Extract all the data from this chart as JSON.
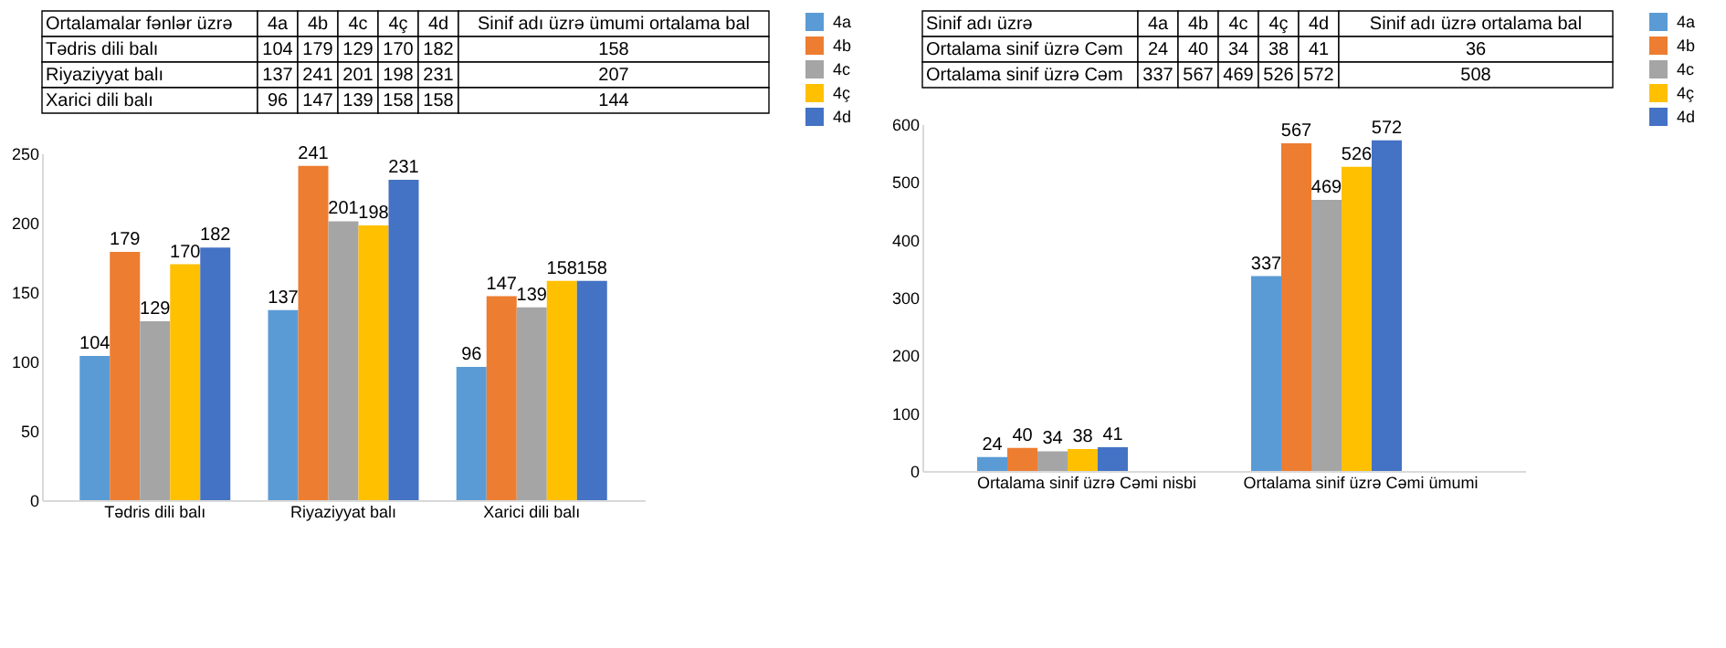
{
  "chart_data": [
    {
      "type": "bar",
      "categories": [
        "Tədris dili balı",
        "Riyaziyyat balı",
        "Xarici dili balı"
      ],
      "series": [
        {
          "name": "4a",
          "color": "#5b9bd5",
          "values": [
            104,
            137,
            96
          ]
        },
        {
          "name": "4b",
          "color": "#ed7d31",
          "values": [
            179,
            241,
            147
          ]
        },
        {
          "name": "4c",
          "color": "#a5a5a5",
          "values": [
            129,
            201,
            139
          ]
        },
        {
          "name": "4ç",
          "color": "#ffc000",
          "values": [
            170,
            198,
            158
          ]
        },
        {
          "name": "4d",
          "color": "#4472c4",
          "values": [
            182,
            231,
            158
          ]
        }
      ],
      "ylim": [
        0,
        250
      ],
      "yticks": [
        0,
        50,
        100,
        150,
        200,
        250
      ],
      "legend": "right",
      "data_labels": true,
      "grid": false,
      "annotations": [
        "Ortalamalar fənlər üzrə",
        "4a",
        "4b",
        "4c",
        "4ç",
        "4d",
        "Sinif adı üzrə ümumi ortalama bal",
        "Tədris dili balı",
        "104",
        "179",
        "129",
        "170",
        "182",
        "158",
        "Riyaziyyat balı",
        "137",
        "241",
        "201",
        "198",
        "231",
        "207",
        "Xarici dili balı",
        "96",
        "147",
        "139",
        "158",
        "158",
        "144"
      ]
    },
    {
      "type": "bar",
      "categories": [
        "Ortalama sinif üzrə Cəmi nisbi",
        "Ortalama sinif üzrə Cəmi ümumi"
      ],
      "series": [
        {
          "name": "4a",
          "color": "#5b9bd5",
          "values": [
            24,
            337
          ]
        },
        {
          "name": "4b",
          "color": "#ed7d31",
          "values": [
            40,
            567
          ]
        },
        {
          "name": "4c",
          "color": "#a5a5a5",
          "values": [
            34,
            469
          ]
        },
        {
          "name": "4ç",
          "color": "#ffc000",
          "values": [
            38,
            526
          ]
        },
        {
          "name": "4d",
          "color": "#4472c4",
          "values": [
            41,
            572
          ]
        }
      ],
      "ylim": [
        0,
        600
      ],
      "yticks": [
        0,
        100,
        200,
        300,
        400,
        500,
        600
      ],
      "legend": "right",
      "data_labels": true,
      "grid": false,
      "annotations": [
        "Sinif adı üzrə",
        "4a",
        "4b",
        "4c",
        "4ç",
        "4d",
        "Sinif adı üzrə ortalama bal",
        "Ortalama sinif üzrə Cəm",
        "24",
        "40",
        "34",
        "38",
        "41",
        "36",
        "Ortalama sinif üzrə Cəm",
        "337",
        "567",
        "469",
        "526",
        "572",
        "508"
      ]
    }
  ]
}
